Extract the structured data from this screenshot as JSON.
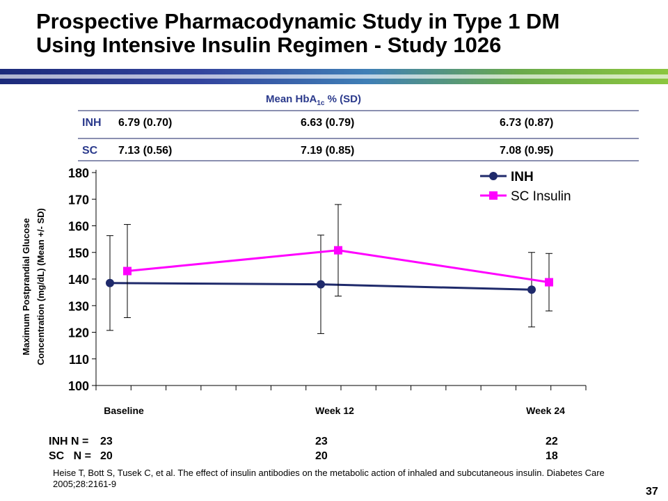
{
  "slide": {
    "title_line1": "Prospective Pharmacodynamic Study in Type 1 DM",
    "title_line2": "Using Intensive Insulin Regimen - Study 1026",
    "page_number": "37",
    "accent_color": "#2b3a8c"
  },
  "hba1c_table": {
    "header_main": "Mean HbA",
    "header_sub": "1c",
    "header_rest": " % (SD)",
    "rows": [
      {
        "label": "INH",
        "values": [
          "6.79 (0.70)",
          "6.63 (0.79)",
          "6.73 (0.87)"
        ]
      },
      {
        "label": "SC",
        "values": [
          "7.13 (0.56)",
          "7.19 (0.85)",
          "7.08 (0.95)"
        ]
      }
    ]
  },
  "n_table": {
    "rows": [
      {
        "label": "INH N = ",
        "values": [
          "23",
          "23",
          "22"
        ]
      },
      {
        "label": "SC   N = ",
        "values": [
          "20",
          "20",
          "18"
        ]
      }
    ]
  },
  "chart_data": {
    "type": "line",
    "categories": [
      "Baseline",
      "Week 12",
      "Week 24"
    ],
    "ylabel_line1": "Maximum Postprandial Glucose",
    "ylabel_line2": "Concentration (mg/dL) (Mean +/- SD)",
    "ylim": [
      100,
      180
    ],
    "yticks": [
      100,
      110,
      120,
      130,
      140,
      150,
      160,
      170,
      180
    ],
    "legend_position": "top-right",
    "grid": false,
    "series": [
      {
        "name": "INH",
        "color": "#1f2a6b",
        "marker": "circle",
        "values": [
          138.5,
          138,
          136
        ],
        "sd": [
          17.8,
          18.5,
          14
        ]
      },
      {
        "name": "SC Insulin",
        "color": "#ff00ff",
        "marker": "square",
        "values": [
          143,
          150.8,
          138.8
        ],
        "sd": [
          17.5,
          17.2,
          10.8
        ]
      }
    ]
  },
  "citation": "Heise T, Bott S, Tusek C, et al.  The effect of insulin antibodies on the metabolic action of inhaled and subcutaneous insulin.  Diabetes Care 2005;28:2161-9"
}
